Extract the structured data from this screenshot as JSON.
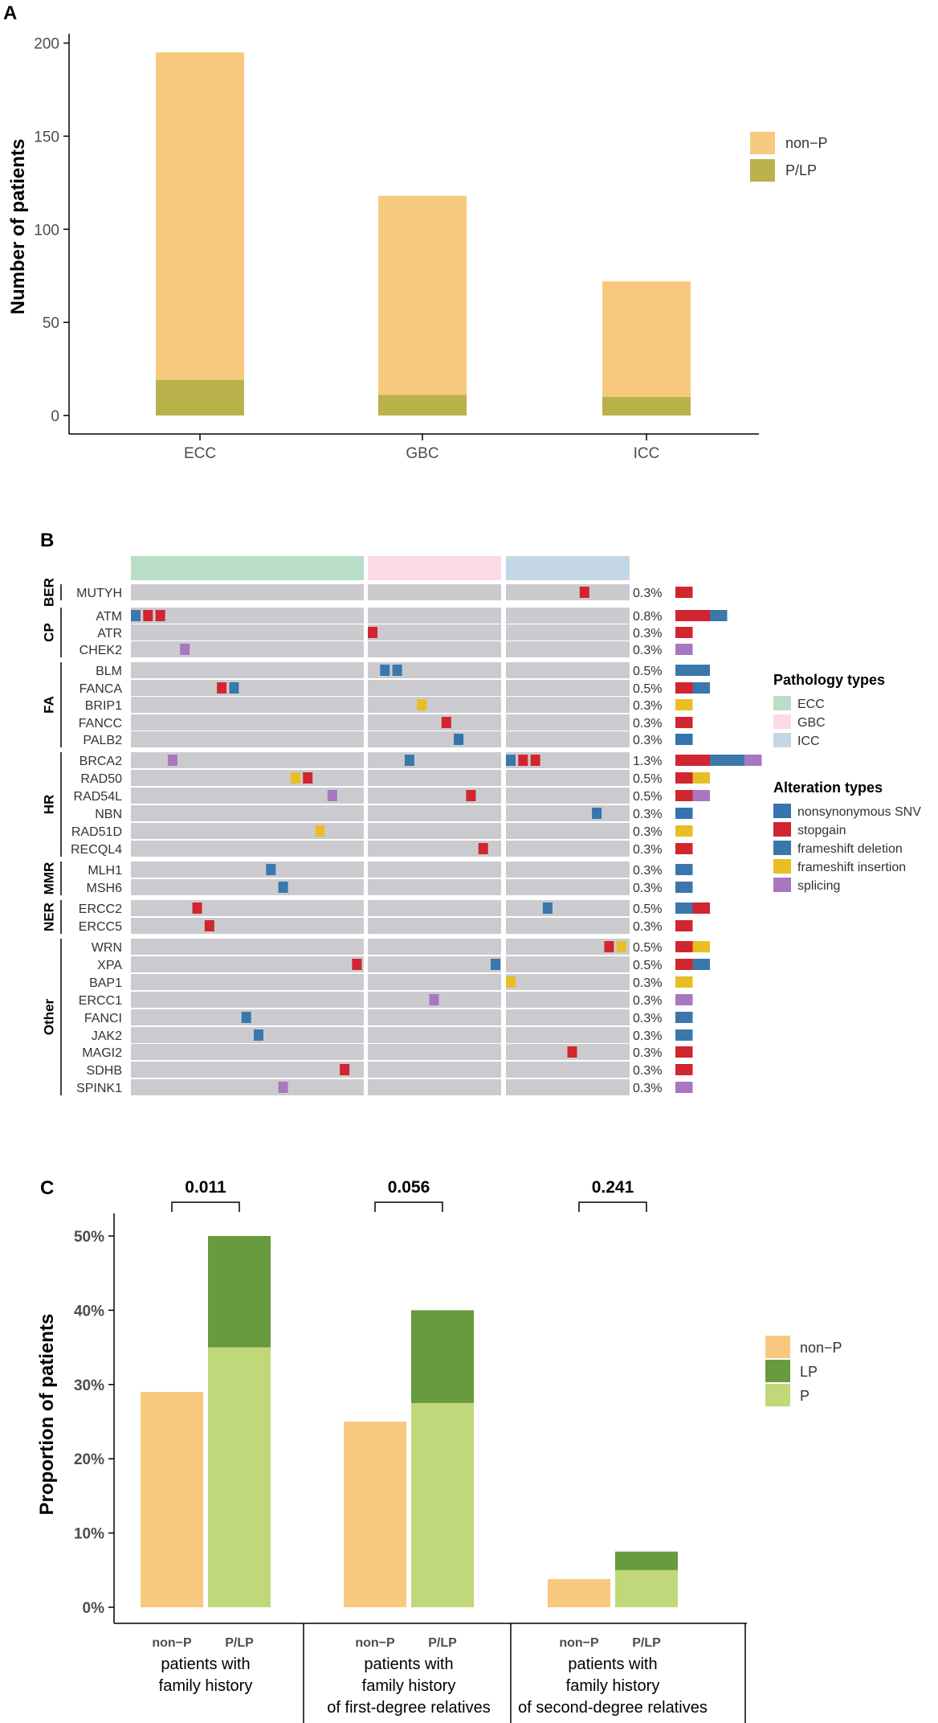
{
  "colors": {
    "nonP": "#F7C97E",
    "PLP": "#B9B24B",
    "LP": "#689A3F",
    "P": "#C0D87A",
    "ECC": "#B9DEC7",
    "GBC": "#FADAE5",
    "ICC": "#C3D7E6",
    "nonsyn": "#3574AE",
    "stopgain": "#D1252F",
    "fsdel": "#3A77AB",
    "fsins": "#E8BE24",
    "splicing": "#A877BF",
    "track": "#CBCBCF"
  },
  "chart_data": [
    {
      "panel": "A",
      "type": "bar",
      "stacked": true,
      "categories": [
        "ECC",
        "GBC",
        "ICC"
      ],
      "series": [
        {
          "name": "non−P",
          "values": [
            176,
            107,
            62
          ]
        },
        {
          "name": "P/LP",
          "values": [
            19,
            11,
            10
          ]
        }
      ],
      "ylabel": "Number of patients",
      "yticks": [
        "0",
        "50",
        "100",
        "150",
        "200"
      ],
      "ylim": [
        0,
        205
      ]
    },
    {
      "panel": "B",
      "type": "oncoprint",
      "columns": [
        "ECC",
        "GBC",
        "ICC"
      ],
      "legend_pathology_title": "Pathology types",
      "legend_alteration_title": "Alteration types",
      "alteration_types": [
        {
          "key": "nonsyn",
          "label": "nonsynonymous SNV"
        },
        {
          "key": "stopgain",
          "label": "stopgain"
        },
        {
          "key": "fsdel",
          "label": "frameshift deletion"
        },
        {
          "key": "fsins",
          "label": "frameshift insertion"
        },
        {
          "key": "splicing",
          "label": "splicing"
        }
      ],
      "groups": [
        {
          "name": "BER",
          "genes": [
            {
              "gene": "MUTYH",
              "pct": "0.3%",
              "cells": [
                [
                  2,
                  6,
                  "stopgain"
                ]
              ],
              "bar": [
                "stopgain"
              ]
            }
          ]
        },
        {
          "name": "CP",
          "genes": [
            {
              "gene": "ATM",
              "pct": "0.8%",
              "cells": [
                [
                  0,
                  0,
                  "fsdel"
                ],
                [
                  0,
                  1,
                  "stopgain"
                ],
                [
                  0,
                  2,
                  "stopgain"
                ]
              ],
              "bar": [
                "stopgain",
                "stopgain",
                "fsdel"
              ]
            },
            {
              "gene": "ATR",
              "pct": "0.3%",
              "cells": [
                [
                  1,
                  0,
                  "stopgain"
                ]
              ],
              "bar": [
                "stopgain"
              ]
            },
            {
              "gene": "CHEK2",
              "pct": "0.3%",
              "cells": [
                [
                  0,
                  4,
                  "splicing"
                ]
              ],
              "bar": [
                "splicing"
              ]
            }
          ]
        },
        {
          "name": "FA",
          "genes": [
            {
              "gene": "BLM",
              "pct": "0.5%",
              "cells": [
                [
                  1,
                  1,
                  "fsdel"
                ],
                [
                  1,
                  2,
                  "fsdel"
                ]
              ],
              "bar": [
                "fsdel",
                "fsdel"
              ]
            },
            {
              "gene": "FANCA",
              "pct": "0.5%",
              "cells": [
                [
                  0,
                  7,
                  "stopgain"
                ],
                [
                  0,
                  8,
                  "fsdel"
                ]
              ],
              "bar": [
                "stopgain",
                "fsdel"
              ]
            },
            {
              "gene": "BRIP1",
              "pct": "0.3%",
              "cells": [
                [
                  1,
                  4,
                  "fsins"
                ]
              ],
              "bar": [
                "fsins"
              ]
            },
            {
              "gene": "FANCC",
              "pct": "0.3%",
              "cells": [
                [
                  1,
                  6,
                  "stopgain"
                ]
              ],
              "bar": [
                "stopgain"
              ]
            },
            {
              "gene": "PALB2",
              "pct": "0.3%",
              "cells": [
                [
                  1,
                  7,
                  "nonsyn"
                ]
              ],
              "bar": [
                "nonsyn"
              ]
            }
          ]
        },
        {
          "name": "HR",
          "genes": [
            {
              "gene": "BRCA2",
              "pct": "1.3%",
              "cells": [
                [
                  0,
                  3,
                  "splicing"
                ],
                [
                  1,
                  3,
                  "fsdel"
                ],
                [
                  2,
                  0,
                  "fsdel"
                ],
                [
                  2,
                  1,
                  "stopgain"
                ],
                [
                  2,
                  2,
                  "stopgain"
                ]
              ],
              "bar": [
                "stopgain",
                "stopgain",
                "fsdel",
                "fsdel",
                "splicing"
              ]
            },
            {
              "gene": "RAD50",
              "pct": "0.5%",
              "cells": [
                [
                  0,
                  13,
                  "fsins"
                ],
                [
                  0,
                  14,
                  "stopgain"
                ]
              ],
              "bar": [
                "stopgain",
                "fsins"
              ]
            },
            {
              "gene": "RAD54L",
              "pct": "0.5%",
              "cells": [
                [
                  0,
                  16,
                  "splicing"
                ],
                [
                  1,
                  8,
                  "stopgain"
                ]
              ],
              "bar": [
                "stopgain",
                "splicing"
              ]
            },
            {
              "gene": "NBN",
              "pct": "0.3%",
              "cells": [
                [
                  2,
                  7,
                  "nonsyn"
                ]
              ],
              "bar": [
                "nonsyn"
              ]
            },
            {
              "gene": "RAD51D",
              "pct": "0.3%",
              "cells": [
                [
                  0,
                  15,
                  "fsins"
                ]
              ],
              "bar": [
                "fsins"
              ]
            },
            {
              "gene": "RECQL4",
              "pct": "0.3%",
              "cells": [
                [
                  1,
                  9,
                  "stopgain"
                ]
              ],
              "bar": [
                "stopgain"
              ]
            }
          ]
        },
        {
          "name": "MMR",
          "genes": [
            {
              "gene": "MLH1",
              "pct": "0.3%",
              "cells": [
                [
                  0,
                  11,
                  "fsdel"
                ]
              ],
              "bar": [
                "fsdel"
              ]
            },
            {
              "gene": "MSH6",
              "pct": "0.3%",
              "cells": [
                [
                  0,
                  12,
                  "fsdel"
                ]
              ],
              "bar": [
                "fsdel"
              ]
            }
          ]
        },
        {
          "name": "NER",
          "genes": [
            {
              "gene": "ERCC2",
              "pct": "0.5%",
              "cells": [
                [
                  0,
                  5,
                  "stopgain"
                ],
                [
                  2,
                  3,
                  "fsdel"
                ]
              ],
              "bar": [
                "fsdel",
                "stopgain"
              ]
            },
            {
              "gene": "ERCC5",
              "pct": "0.3%",
              "cells": [
                [
                  0,
                  6,
                  "stopgain"
                ]
              ],
              "bar": [
                "stopgain"
              ]
            }
          ]
        },
        {
          "name": "Other",
          "genes": [
            {
              "gene": "WRN",
              "pct": "0.5%",
              "cells": [
                [
                  2,
                  8,
                  "stopgain"
                ],
                [
                  2,
                  9,
                  "fsins"
                ]
              ],
              "bar": [
                "stopgain",
                "fsins"
              ]
            },
            {
              "gene": "XPA",
              "pct": "0.5%",
              "cells": [
                [
                  0,
                  18,
                  "stopgain"
                ],
                [
                  1,
                  10,
                  "fsdel"
                ]
              ],
              "bar": [
                "stopgain",
                "fsdel"
              ]
            },
            {
              "gene": "BAP1",
              "pct": "0.3%",
              "cells": [
                [
                  2,
                  0,
                  "fsins"
                ]
              ],
              "bar": [
                "fsins"
              ]
            },
            {
              "gene": "ERCC1",
              "pct": "0.3%",
              "cells": [
                [
                  1,
                  5,
                  "splicing"
                ]
              ],
              "bar": [
                "splicing"
              ]
            },
            {
              "gene": "FANCI",
              "pct": "0.3%",
              "cells": [
                [
                  0,
                  9,
                  "fsdel"
                ]
              ],
              "bar": [
                "fsdel"
              ]
            },
            {
              "gene": "JAK2",
              "pct": "0.3%",
              "cells": [
                [
                  0,
                  10,
                  "fsdel"
                ]
              ],
              "bar": [
                "fsdel"
              ]
            },
            {
              "gene": "MAGI2",
              "pct": "0.3%",
              "cells": [
                [
                  2,
                  5,
                  "stopgain"
                ]
              ],
              "bar": [
                "stopgain"
              ]
            },
            {
              "gene": "SDHB",
              "pct": "0.3%",
              "cells": [
                [
                  0,
                  17,
                  "stopgain"
                ]
              ],
              "bar": [
                "stopgain"
              ]
            },
            {
              "gene": "SPINK1",
              "pct": "0.3%",
              "cells": [
                [
                  0,
                  12,
                  "splicing"
                ]
              ],
              "bar": [
                "splicing"
              ]
            }
          ]
        }
      ]
    },
    {
      "panel": "C",
      "type": "bar",
      "stacked": true,
      "ylabel": "Proportion of patients",
      "yticks": [
        "0%",
        "10%",
        "20%",
        "30%",
        "40%",
        "50%"
      ],
      "ylim": [
        0,
        0.52
      ],
      "groups": [
        {
          "label_lines": [
            "patients with",
            "family history"
          ],
          "pvalue": "0.011",
          "nonP": 0.29,
          "P": 0.35,
          "LP": 0.15
        },
        {
          "label_lines": [
            "patients with",
            "family history",
            "of first-degree relatives"
          ],
          "pvalue": "0.056",
          "nonP": 0.25,
          "P": 0.275,
          "LP": 0.125
        },
        {
          "label_lines": [
            "patients with",
            "family history",
            "of second-degree relatives"
          ],
          "pvalue": "0.241",
          "nonP": 0.038,
          "P": 0.05,
          "LP": 0.025
        }
      ],
      "bar_labels": [
        "non−P",
        "P/LP"
      ],
      "legend": [
        "non−P",
        "LP",
        "P"
      ]
    }
  ],
  "panel_labels": [
    "A",
    "B",
    "C"
  ]
}
